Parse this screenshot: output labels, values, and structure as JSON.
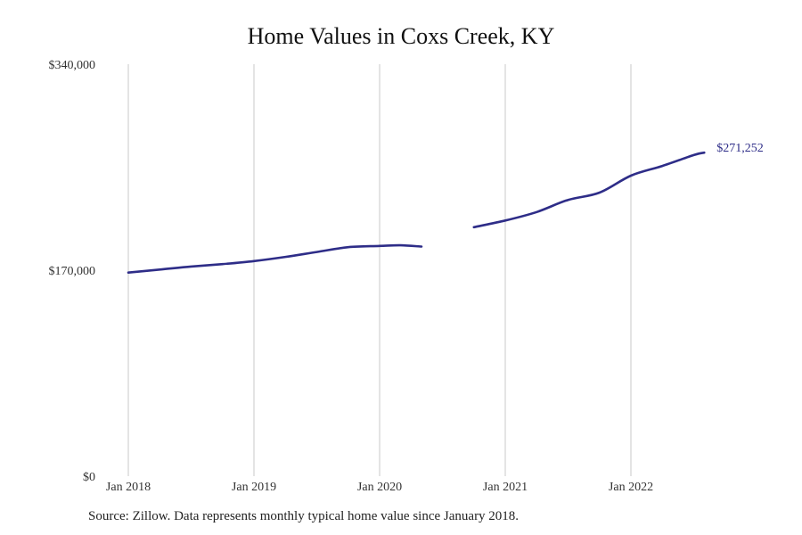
{
  "chart_data": {
    "type": "line",
    "title": "Home Values in Coxs Creek, KY",
    "xlabel": "",
    "ylabel": "",
    "ylim": [
      0,
      340000
    ],
    "y_ticks": [
      {
        "value": 0,
        "label": "$0"
      },
      {
        "value": 170000,
        "label": "$170,000"
      },
      {
        "value": 340000,
        "label": "$340,000"
      }
    ],
    "x_ticks": [
      {
        "value": "2018-01",
        "label": "Jan 2018"
      },
      {
        "value": "2019-01",
        "label": "Jan 2019"
      },
      {
        "value": "2020-01",
        "label": "Jan 2020"
      },
      {
        "value": "2021-01",
        "label": "Jan 2021"
      },
      {
        "value": "2022-01",
        "label": "Jan 2022"
      }
    ],
    "x_range": [
      "2018-01",
      "2023-01"
    ],
    "grid": "vertical",
    "line_color": "#2e2d88",
    "end_label": "$271,252",
    "series": [
      {
        "segments": [
          [
            {
              "x": "2018-01",
              "y": 168000
            },
            {
              "x": "2018-04",
              "y": 170500
            },
            {
              "x": "2018-07",
              "y": 173000
            },
            {
              "x": "2018-10",
              "y": 175000
            },
            {
              "x": "2019-01",
              "y": 177500
            },
            {
              "x": "2019-04",
              "y": 181000
            },
            {
              "x": "2019-07",
              "y": 185000
            },
            {
              "x": "2019-10",
              "y": 189000
            },
            {
              "x": "2020-01",
              "y": 190000
            },
            {
              "x": "2020-03",
              "y": 190500
            },
            {
              "x": "2020-05",
              "y": 189500
            }
          ],
          [
            {
              "x": "2020-10",
              "y": 205500
            },
            {
              "x": "2021-01",
              "y": 211000
            },
            {
              "x": "2021-04",
              "y": 218000
            },
            {
              "x": "2021-07",
              "y": 228000
            },
            {
              "x": "2021-10",
              "y": 234000
            },
            {
              "x": "2022-01",
              "y": 248000
            },
            {
              "x": "2022-04",
              "y": 256000
            },
            {
              "x": "2022-07",
              "y": 265000
            },
            {
              "x": "2022-08",
              "y": 267000
            }
          ]
        ]
      }
    ]
  },
  "footer": {
    "source": "Source: Zillow. Data represents monthly typical home value since January 2018."
  }
}
